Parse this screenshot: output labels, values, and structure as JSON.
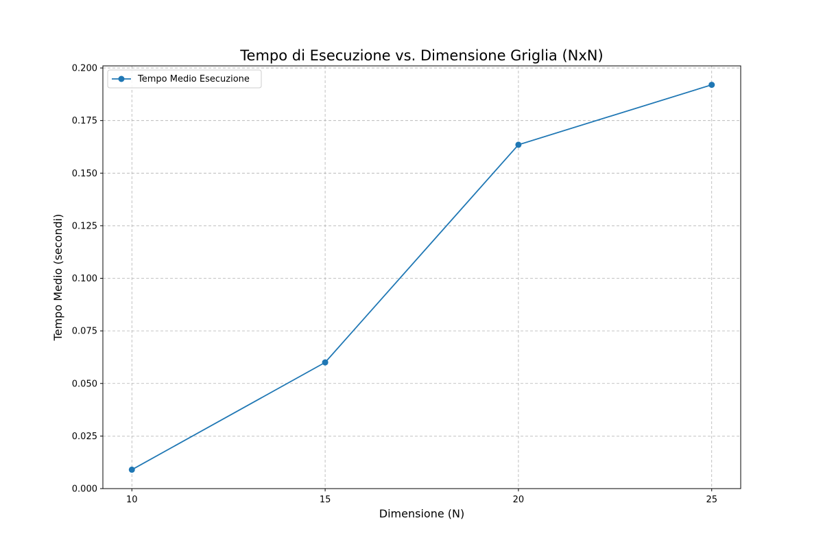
{
  "chart_data": {
    "type": "line",
    "title": "Tempo di Esecuzione vs. Dimensione Griglia (NxN)",
    "xlabel": "Dimensione (N)",
    "ylabel": "Tempo Medio (secondi)",
    "x": [
      10,
      15,
      20,
      25
    ],
    "xticks": [
      10,
      15,
      20,
      25
    ],
    "xtick_labels": [
      "10",
      "15",
      "20",
      "25"
    ],
    "xlim": [
      9.25,
      25.75
    ],
    "ylim": [
      0,
      0.201
    ],
    "yticks": [
      0,
      0.025,
      0.05,
      0.075,
      0.1,
      0.125,
      0.15,
      0.175,
      0.2
    ],
    "ytick_labels": [
      "0.000",
      "0.025",
      "0.050",
      "0.075",
      "0.100",
      "0.125",
      "0.150",
      "0.175",
      "0.200"
    ],
    "series": [
      {
        "name": "Tempo Medio Esecuzione",
        "values": [
          0.009,
          0.06,
          0.1635,
          0.192
        ],
        "color": "#1f77b4",
        "marker": "circle"
      }
    ],
    "grid": true,
    "grid_style": "dashed",
    "legend_position": "upper-left"
  }
}
